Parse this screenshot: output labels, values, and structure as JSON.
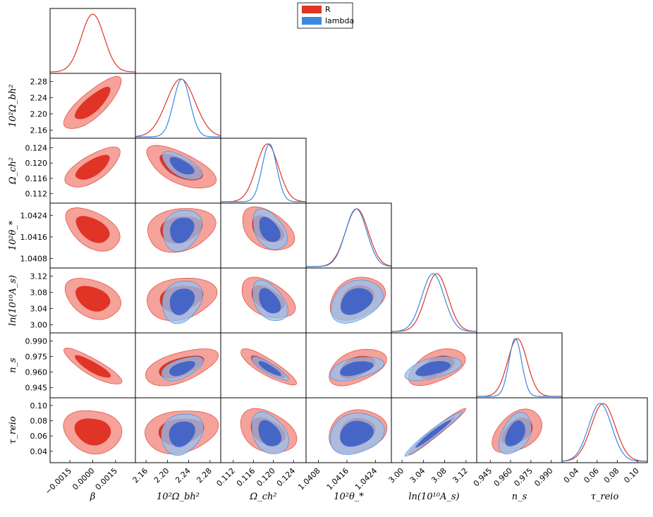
{
  "chart_data": {
    "type": "triangle-plot",
    "title": "",
    "params": [
      {
        "key": "beta",
        "label": "β",
        "range": [
          -0.0028,
          0.0028
        ],
        "ticks": [
          -0.0015,
          0.0,
          0.0015
        ],
        "tick_labels": [
          "−0.0015",
          "0.0000",
          "0.0015"
        ]
      },
      {
        "key": "omegabh2",
        "label": "10²Ω_bh²",
        "range": [
          2.14,
          2.3
        ],
        "ticks": [
          2.16,
          2.2,
          2.24,
          2.28
        ],
        "tick_labels": [
          "2.16",
          "2.20",
          "2.24",
          "2.28"
        ]
      },
      {
        "key": "omegach2",
        "label": "Ω_ch²",
        "range": [
          0.1095,
          0.1265
        ],
        "ticks": [
          0.112,
          0.116,
          0.12,
          0.124
        ],
        "tick_labels": [
          "0.112",
          "0.116",
          "0.120",
          "0.124"
        ]
      },
      {
        "key": "theta",
        "label": "10²θ_*",
        "range": [
          1.04045,
          1.04285
        ],
        "ticks": [
          1.0408,
          1.0416,
          1.0424
        ],
        "tick_labels": [
          "1.0408",
          "1.0416",
          "1.0424"
        ]
      },
      {
        "key": "logA",
        "label": "ln(10¹⁰A_s)",
        "range": [
          2.98,
          3.14
        ],
        "ticks": [
          3.0,
          3.04,
          3.08,
          3.12
        ],
        "tick_labels": [
          "3.00",
          "3.04",
          "3.08",
          "3.12"
        ]
      },
      {
        "key": "ns",
        "label": "n_s",
        "range": [
          0.935,
          0.998
        ],
        "ticks": [
          0.945,
          0.96,
          0.975,
          0.99
        ],
        "tick_labels": [
          "0.945",
          "0.960",
          "0.975",
          "0.990"
        ]
      },
      {
        "key": "tau",
        "label": "τ_reio",
        "range": [
          0.025,
          0.11
        ],
        "ticks": [
          0.04,
          0.06,
          0.08,
          0.1
        ],
        "tick_labels": [
          "0.04",
          "0.06",
          "0.08",
          "0.10"
        ]
      }
    ],
    "series": [
      {
        "name": "R",
        "color": "#e03426",
        "light": "#f4a29a",
        "means": {
          "beta": 0.0,
          "omegabh2": 2.225,
          "omegach2": 0.1188,
          "theta": 1.04188,
          "logA": 3.065,
          "ns": 0.965,
          "tau": 0.066
        },
        "sigmas": {
          "beta": 0.00075,
          "omegabh2": 0.027,
          "omegach2": 0.0022,
          "theta": 0.00032,
          "logA": 0.021,
          "ns": 0.0072,
          "tau": 0.012
        }
      },
      {
        "name": "lambda",
        "color": "#3a88df",
        "light": "#94c2f0",
        "means": {
          "omegabh2": 2.227,
          "omegach2": 0.1192,
          "theta": 1.04186,
          "logA": 3.058,
          "ns": 0.9635,
          "tau": 0.063
        },
        "sigmas": {
          "omegabh2": 0.0155,
          "omegach2": 0.00145,
          "theta": 0.0003,
          "logA": 0.021,
          "ns": 0.0047,
          "tau": 0.0115
        }
      }
    ],
    "correlations": {
      "beta|omegabh2": 0.8,
      "beta|omegach2": 0.72,
      "beta|theta": -0.5,
      "beta|logA": -0.4,
      "beta|ns": -0.85,
      "beta|tau": -0.1,
      "omegabh2|omegach2": -0.62,
      "omegabh2|theta": 0.2,
      "omegabh2|logA": 0.15,
      "omegabh2|ns": 0.5,
      "omegabh2|tau": 0.2,
      "omegach2|theta": -0.45,
      "omegach2|logA": -0.5,
      "omegach2|ns": -0.85,
      "omegach2|tau": -0.3,
      "theta|logA": 0.25,
      "theta|ns": 0.4,
      "theta|tau": 0.2,
      "logA|ns": 0.45,
      "logA|tau": 0.97,
      "ns|tau": 0.4
    },
    "legend": {
      "position": "top-center",
      "entries": [
        "R",
        "lambda"
      ]
    }
  }
}
